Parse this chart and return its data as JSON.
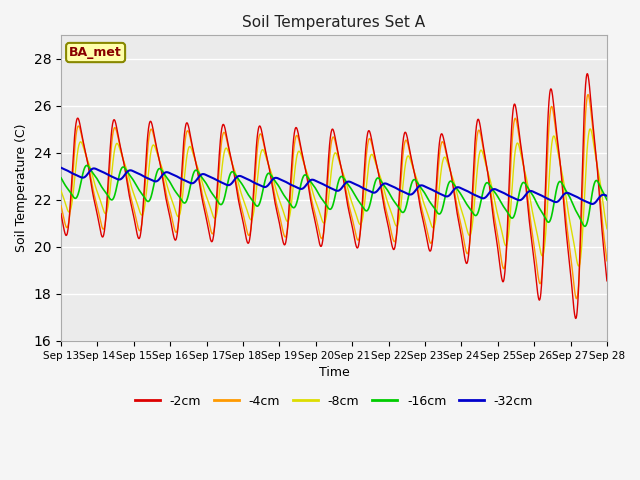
{
  "title": "Soil Temperatures Set A",
  "xlabel": "Time",
  "ylabel": "Soil Temperature (C)",
  "ylim": [
    16,
    29
  ],
  "yticks": [
    16,
    18,
    20,
    22,
    24,
    26,
    28
  ],
  "x_tick_labels": [
    "Sep 13",
    "Sep 14",
    "Sep 15",
    "Sep 16",
    "Sep 17",
    "Sep 18",
    "Sep 19",
    "Sep 20",
    "Sep 21",
    "Sep 22",
    "Sep 23",
    "Sep 24",
    "Sep 25",
    "Sep 26",
    "Sep 27",
    "Sep 28"
  ],
  "colors": {
    "m2cm": "#dd0000",
    "m4cm": "#ff9900",
    "m8cm": "#dddd00",
    "m16cm": "#00cc00",
    "m32cm": "#0000cc"
  },
  "legend_labels": [
    "-2cm",
    "-4cm",
    "-8cm",
    "-16cm",
    "-32cm"
  ],
  "legend_label_box": "BA_met",
  "fig_facecolor": "#f5f5f5",
  "ax_facecolor": "#ebebeb"
}
